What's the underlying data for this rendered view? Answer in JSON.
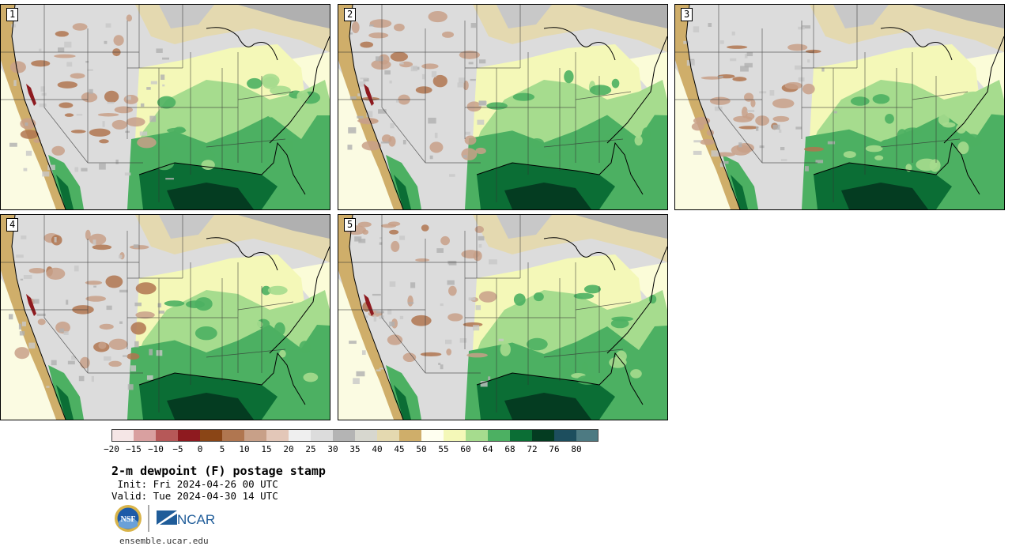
{
  "title": "2-m dewpoint (F) postage stamp",
  "init": " Init: Fri 2024-04-26 00 UTC",
  "valid": "Valid: Tue 2024-04-30 14 UTC",
  "url": "ensemble.ucar.edu",
  "logos": {
    "nsf": "NSF",
    "ncar": "NCAR"
  },
  "panels": [
    {
      "label": "1"
    },
    {
      "label": "2"
    },
    {
      "label": "3"
    },
    {
      "label": "4"
    },
    {
      "label": "5"
    }
  ],
  "colorbar": {
    "ticks": [
      "−20",
      "−15",
      "−10",
      "−5",
      "0",
      "5",
      "10",
      "15",
      "20",
      "25",
      "30",
      "35",
      "40",
      "45",
      "50",
      "55",
      "60",
      "64",
      "68",
      "72",
      "76",
      "80"
    ],
    "colors": [
      "#f5e6e6",
      "#d9a0a0",
      "#b65858",
      "#8e1a1f",
      "#8a4516",
      "#b07650",
      "#c8a088",
      "#e3c7b8",
      "#efefef",
      "#dcdcdc",
      "#b4b4b4",
      "#d7d7cf",
      "#e4d9b0",
      "#cfae6a",
      "#fffff0",
      "#f4f8b8",
      "#a6dc8e",
      "#4cb062",
      "#0b6e35",
      "#043c21",
      "#1d4e5e",
      "#4d7a82"
    ]
  }
}
